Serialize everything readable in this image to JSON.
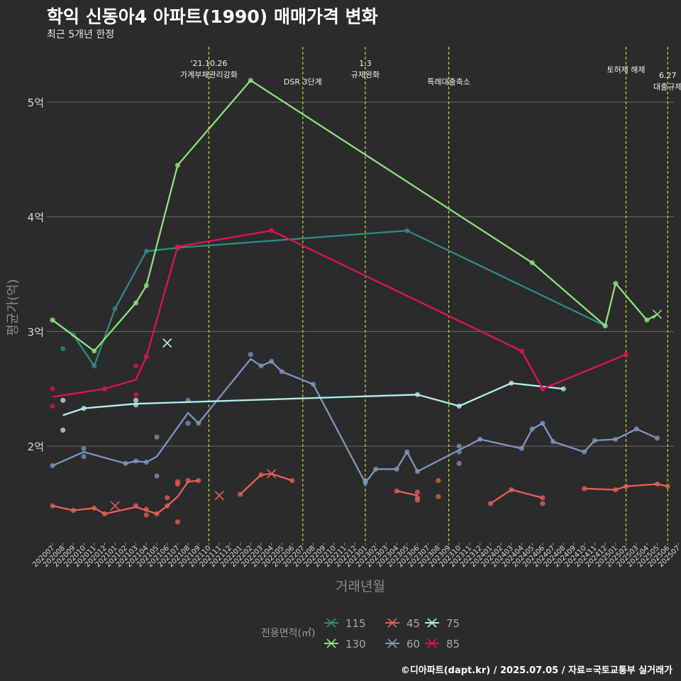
{
  "chart_data": {
    "type": "line",
    "title": "학익 신동아4 아파트(1990) 매매가격 변화",
    "subtitle": "최근 5개년 한정",
    "xlabel": "거래년월",
    "ylabel": "평균가(억)",
    "caption": "©디아파트(dapt.kr) / 2025.07.05 / 자료=국토교통부 실거래가",
    "legend_title": "전용면적(㎡)",
    "legend_placement": "bottom",
    "grid": true,
    "ylim": [
      1.2,
      5.4
    ],
    "yticks": [
      {
        "v": 2,
        "label": "2억"
      },
      {
        "v": 3,
        "label": "3억"
      },
      {
        "v": 4,
        "label": "4억"
      },
      {
        "v": 5,
        "label": "5억"
      }
    ],
    "x_categories": [
      "202007",
      "202008",
      "202009",
      "202010",
      "202011",
      "202012",
      "202101",
      "202102",
      "202103",
      "202104",
      "202105",
      "202106",
      "202107",
      "202108",
      "202109",
      "202110",
      "202111",
      "202112",
      "202201",
      "202202",
      "202203",
      "202204",
      "202205",
      "202206",
      "202207",
      "202208",
      "202209",
      "202210",
      "202211",
      "202212",
      "202301",
      "202302",
      "202303",
      "202304",
      "202305",
      "202306",
      "202307",
      "202308",
      "202309",
      "202310",
      "202311",
      "202312",
      "202401",
      "202402",
      "202403",
      "202404",
      "202405",
      "202406",
      "202407",
      "202408",
      "202409",
      "202410",
      "202411",
      "202412",
      "202501",
      "202502",
      "202503",
      "202504",
      "202505",
      "202506",
      "202507"
    ],
    "events": [
      {
        "x": "202110",
        "label": "'21.10.26\n가계부채관리강화"
      },
      {
        "x": "202207",
        "label": "DSR 3단계"
      },
      {
        "x": "202301",
        "label": "1.3\n규제완화"
      },
      {
        "x": "202309",
        "label": "특례대출축소"
      },
      {
        "x": "202502",
        "label": "토허제 해제"
      },
      {
        "x": "202506",
        "label": "6.27\n대출규제"
      }
    ],
    "series": [
      {
        "name": "115",
        "color": "#2e8b87",
        "line": [
          [
            "202007",
            3.1
          ],
          [
            "202009",
            2.97
          ],
          [
            "202011",
            2.7
          ],
          [
            "202101",
            3.2
          ],
          [
            "202104",
            3.7
          ],
          [
            "202107",
            3.73
          ],
          [
            "202305",
            3.88
          ],
          [
            "202412",
            3.05
          ]
        ],
        "points": [
          [
            "202007",
            3.1
          ],
          [
            "202008",
            2.85
          ],
          [
            "202009",
            2.97
          ],
          [
            "202011",
            2.7
          ],
          [
            "202101",
            3.2
          ],
          [
            "202104",
            3.7
          ],
          [
            "202107",
            3.73
          ],
          [
            "202305",
            3.88
          ],
          [
            "202412",
            3.05
          ]
        ],
        "crosses": []
      },
      {
        "name": "130",
        "color": "#8fe07f",
        "line": [
          [
            "202007",
            3.1
          ],
          [
            "202011",
            2.83
          ],
          [
            "202103",
            3.25
          ],
          [
            "202104",
            3.4
          ],
          [
            "202107",
            4.45
          ],
          [
            "202202",
            5.19
          ],
          [
            "202405",
            3.6
          ],
          [
            "202412",
            3.05
          ],
          [
            "202501",
            3.42
          ],
          [
            "202504",
            3.1
          ],
          [
            "202505",
            3.15
          ]
        ],
        "points": [
          [
            "202007",
            3.1
          ],
          [
            "202011",
            2.83
          ],
          [
            "202103",
            3.25
          ],
          [
            "202104",
            3.4
          ],
          [
            "202107",
            4.45
          ],
          [
            "202202",
            5.19
          ],
          [
            "202405",
            3.6
          ],
          [
            "202412",
            3.05
          ],
          [
            "202501",
            3.42
          ],
          [
            "202504",
            3.1
          ]
        ],
        "crosses": [
          [
            "202505",
            3.15
          ]
        ]
      },
      {
        "name": "45",
        "color": "#e8605a",
        "line": [],
        "line_segments": [
          [
            [
              "202007",
              1.48
            ],
            [
              "202009",
              1.44
            ],
            [
              "202011",
              1.46
            ],
            [
              "202012",
              1.41
            ],
            [
              "202103",
              1.47
            ],
            [
              "202105",
              1.41
            ],
            [
              "202106",
              1.48
            ],
            [
              "202107",
              1.56
            ],
            [
              "202108",
              1.69
            ],
            [
              "202109",
              1.7
            ]
          ],
          [
            [
              "202201",
              1.58
            ],
            [
              "202203",
              1.75
            ],
            [
              "202204",
              1.76
            ],
            [
              "202206",
              1.7
            ]
          ],
          [
            [
              "202304",
              1.61
            ],
            [
              "202306",
              1.57
            ]
          ],
          [
            [
              "202401",
              1.5
            ],
            [
              "202403",
              1.62
            ],
            [
              "202406",
              1.55
            ]
          ],
          [
            [
              "202410",
              1.63
            ],
            [
              "202501",
              1.62
            ],
            [
              "202502",
              1.65
            ],
            [
              "202505",
              1.67
            ],
            [
              "202506",
              1.65
            ]
          ]
        ],
        "points": [
          [
            "202007",
            1.48
          ],
          [
            "202009",
            1.44
          ],
          [
            "202011",
            1.46
          ],
          [
            "202012",
            1.41
          ],
          [
            "202103",
            1.48
          ],
          [
            "202104",
            1.45
          ],
          [
            "202104",
            1.4
          ],
          [
            "202105",
            1.41
          ],
          [
            "202106",
            1.55
          ],
          [
            "202106",
            1.48
          ],
          [
            "202107",
            1.69
          ],
          [
            "202107",
            1.67
          ],
          [
            "202107",
            1.34
          ],
          [
            "202108",
            1.7
          ],
          [
            "202109",
            1.7
          ],
          [
            "202201",
            1.58
          ],
          [
            "202203",
            1.75
          ],
          [
            "202206",
            1.7
          ],
          [
            "202304",
            1.61
          ],
          [
            "202306",
            1.6
          ],
          [
            "202306",
            1.55
          ],
          [
            "202306",
            1.53
          ],
          [
            "202308",
            1.7
          ],
          [
            "202308",
            1.56
          ],
          [
            "202401",
            1.5
          ],
          [
            "202403",
            1.62
          ],
          [
            "202406",
            1.55
          ],
          [
            "202406",
            1.5
          ],
          [
            "202410",
            1.63
          ],
          [
            "202501",
            1.62
          ],
          [
            "202502",
            1.65
          ],
          [
            "202505",
            1.67
          ],
          [
            "202506",
            1.65
          ]
        ],
        "crosses": [
          [
            "202101",
            1.48
          ],
          [
            "202111",
            1.57
          ],
          [
            "202204",
            1.76
          ]
        ]
      },
      {
        "name": "60",
        "color": "#7d96c2",
        "line": [
          [
            "202007",
            1.83
          ],
          [
            "202010",
            1.95
          ],
          [
            "202102",
            1.85
          ],
          [
            "202103",
            1.87
          ],
          [
            "202104",
            1.86
          ],
          [
            "202105",
            1.91
          ],
          [
            "202108",
            2.29
          ],
          [
            "202109",
            2.2
          ],
          [
            "202202",
            2.76
          ],
          [
            "202203",
            2.7
          ],
          [
            "202204",
            2.74
          ],
          [
            "202205",
            2.65
          ],
          [
            "202208",
            2.54
          ],
          [
            "202301",
            1.68
          ],
          [
            "202302",
            1.8
          ],
          [
            "202304",
            1.8
          ],
          [
            "202305",
            1.95
          ],
          [
            "202306",
            1.78
          ],
          [
            "202312",
            2.06
          ],
          [
            "202404",
            1.98
          ],
          [
            "202405",
            2.15
          ],
          [
            "202406",
            2.2
          ],
          [
            "202407",
            2.04
          ],
          [
            "202410",
            1.95
          ],
          [
            "202411",
            2.05
          ],
          [
            "202501",
            2.06
          ],
          [
            "202503",
            2.15
          ],
          [
            "202505",
            2.07
          ]
        ],
        "points": [
          [
            "202007",
            1.83
          ],
          [
            "202010",
            1.98
          ],
          [
            "202010",
            1.91
          ],
          [
            "202102",
            1.85
          ],
          [
            "202103",
            1.87
          ],
          [
            "202104",
            1.86
          ],
          [
            "202105",
            2.08
          ],
          [
            "202105",
            1.74
          ],
          [
            "202108",
            2.4
          ],
          [
            "202108",
            2.2
          ],
          [
            "202109",
            2.2
          ],
          [
            "202202",
            2.8
          ],
          [
            "202203",
            2.7
          ],
          [
            "202204",
            2.74
          ],
          [
            "202205",
            2.65
          ],
          [
            "202208",
            2.54
          ],
          [
            "202301",
            1.7
          ],
          [
            "202301",
            1.68
          ],
          [
            "202302",
            1.8
          ],
          [
            "202304",
            1.8
          ],
          [
            "202305",
            1.95
          ],
          [
            "202306",
            1.78
          ],
          [
            "202310",
            2.0
          ],
          [
            "202310",
            1.95
          ],
          [
            "202310",
            1.85
          ],
          [
            "202312",
            2.06
          ],
          [
            "202404",
            1.98
          ],
          [
            "202405",
            2.15
          ],
          [
            "202406",
            2.2
          ],
          [
            "202407",
            2.04
          ],
          [
            "202410",
            1.95
          ],
          [
            "202411",
            2.05
          ],
          [
            "202501",
            2.06
          ],
          [
            "202503",
            2.15
          ],
          [
            "202505",
            2.07
          ]
        ],
        "crosses": []
      },
      {
        "name": "75",
        "color": "#b2f0ea",
        "line": [
          [
            "202008",
            2.27
          ],
          [
            "202010",
            2.33
          ],
          [
            "202103",
            2.37
          ],
          [
            "202306",
            2.45
          ],
          [
            "202310",
            2.35
          ],
          [
            "202403",
            2.55
          ],
          [
            "202406",
            2.52
          ],
          [
            "202408",
            2.5
          ]
        ],
        "points": [
          [
            "202008",
            2.4
          ],
          [
            "202008",
            2.14
          ],
          [
            "202010",
            2.33
          ],
          [
            "202103",
            2.4
          ],
          [
            "202103",
            2.36
          ],
          [
            "202306",
            2.45
          ],
          [
            "202310",
            2.35
          ],
          [
            "202403",
            2.55
          ],
          [
            "202408",
            2.5
          ]
        ],
        "crosses": [
          [
            "202106",
            2.9
          ]
        ]
      },
      {
        "name": "85",
        "color": "#e0105a",
        "line": [
          [
            "202007",
            2.43
          ],
          [
            "202012",
            2.5
          ],
          [
            "202103",
            2.58
          ],
          [
            "202104",
            2.78
          ],
          [
            "202107",
            3.74
          ],
          [
            "202204",
            3.88
          ],
          [
            "202404",
            2.83
          ],
          [
            "202406",
            2.5
          ],
          [
            "202502",
            2.8
          ]
        ],
        "points": [
          [
            "202007",
            2.5
          ],
          [
            "202007",
            2.35
          ],
          [
            "202012",
            2.5
          ],
          [
            "202103",
            2.7
          ],
          [
            "202103",
            2.45
          ],
          [
            "202104",
            2.78
          ],
          [
            "202107",
            3.74
          ],
          [
            "202204",
            3.88
          ],
          [
            "202404",
            2.83
          ],
          [
            "202406",
            2.5
          ],
          [
            "202502",
            2.8
          ]
        ],
        "crosses": []
      }
    ],
    "legend_order": [
      "115",
      "130",
      "45",
      "60",
      "75",
      "85"
    ]
  }
}
